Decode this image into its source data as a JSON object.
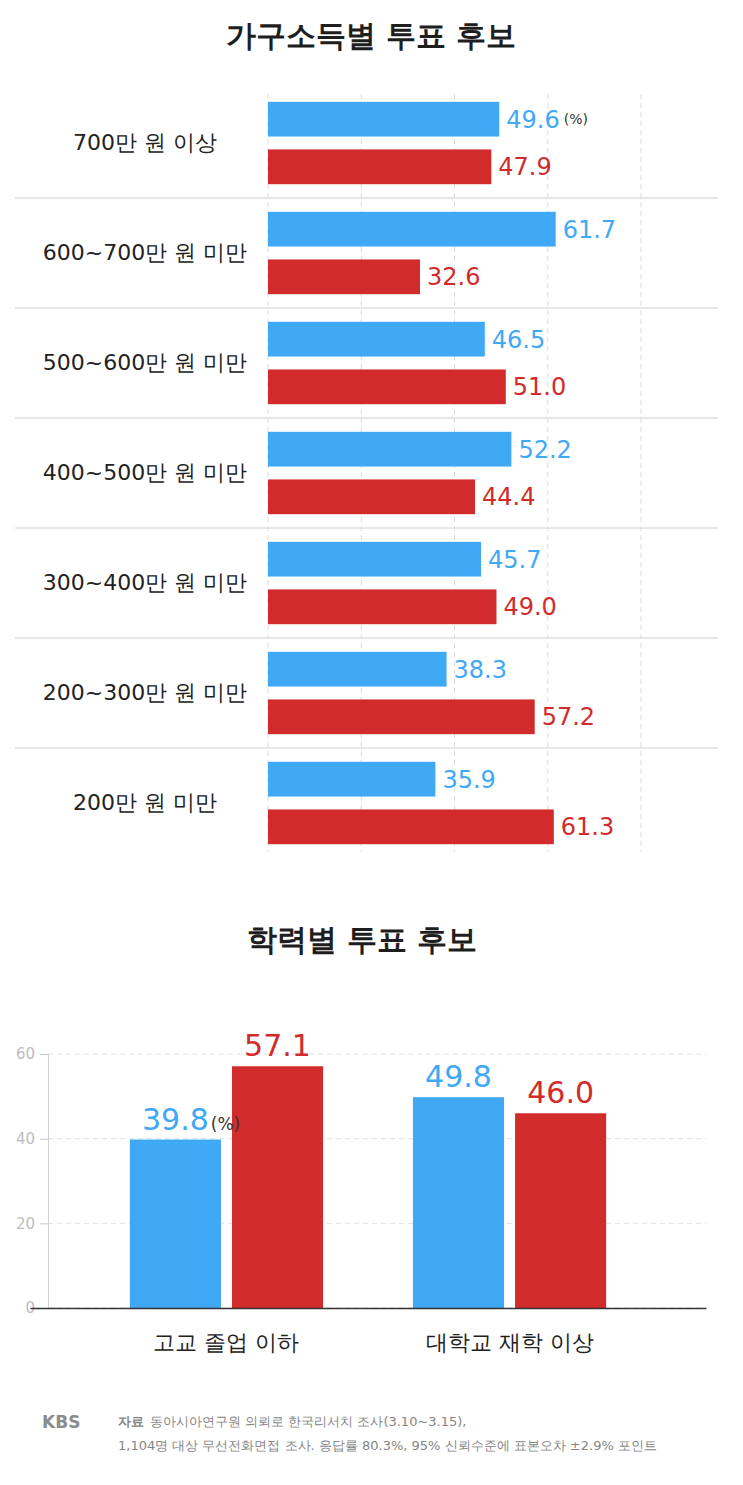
{
  "chart_data": [
    {
      "type": "bar",
      "orientation": "horizontal",
      "title": "가구소득별 투표 후보",
      "categories": [
        "700만 원 이상",
        "600~700만 원 미만",
        "500~600만 원 미만",
        "400~500만 원 미만",
        "300~400만 원 미만",
        "200~300만 원 미만",
        "200만 원 미만"
      ],
      "series": [
        {
          "color": "#3fa9f5",
          "values": [
            49.6,
            61.7,
            46.5,
            52.2,
            45.7,
            38.3,
            35.9
          ],
          "value_labels": [
            "49.6",
            "61.7",
            "46.5",
            "52.2",
            "45.7",
            "38.3",
            "35.9"
          ]
        },
        {
          "color": "#d22b2b",
          "values": [
            47.9,
            32.6,
            51.0,
            44.4,
            49.0,
            57.2,
            61.3
          ],
          "value_labels": [
            "47.9",
            "32.6",
            "51.0",
            "44.4",
            "49.0",
            "57.2",
            "61.3"
          ]
        }
      ],
      "annotations": [
        "(%)"
      ],
      "xlim": [
        0,
        80
      ],
      "xticks": [
        0,
        20,
        40,
        60,
        80
      ],
      "grid": true,
      "data_labels": true,
      "tick_labels": "y"
    },
    {
      "type": "bar",
      "title": "학력별 투표 후보",
      "categories": [
        "고교 졸업 이하",
        "대학교 재학 이상"
      ],
      "series": [
        {
          "color": "#3fa9f5",
          "values": [
            39.8,
            49.8
          ],
          "value_labels": [
            "39.8",
            "49.8"
          ]
        },
        {
          "color": "#d22b2b",
          "values": [
            57.1,
            46.0
          ],
          "value_labels": [
            "57.1",
            "46.0"
          ]
        }
      ],
      "annotations": [
        "(%)"
      ],
      "ylim": [
        0,
        60
      ],
      "yticks": [
        0,
        20,
        40,
        60
      ],
      "grid": true,
      "data_labels": true,
      "tick_labels": true
    }
  ],
  "footer": {
    "logo": "KBS",
    "source_label": "자료",
    "lines": [
      "동아시아연구원 의뢰로 한국리서치 조사(3.10~3.15),",
      "1,104명 대상 무선전화면접 조사. 응답률 80.3%, 95% 신뢰수준에 표본오차 ±2.9% 포인트"
    ]
  }
}
